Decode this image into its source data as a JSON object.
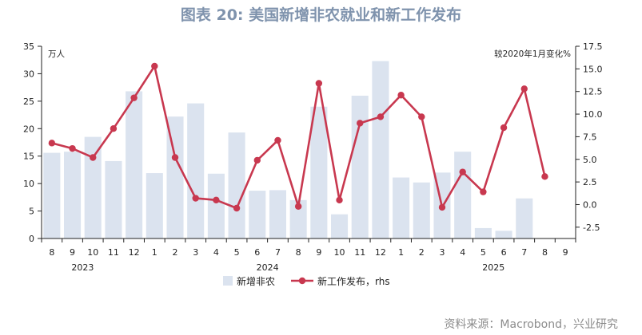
{
  "title": "图表 20: 美国新增非农就业和新工作发布",
  "source": "资料来源：Macrobond，兴业研究",
  "colors": {
    "bars": "#dbe3ef",
    "line": "#c8384f"
  },
  "chart_data": {
    "type": "bar+line",
    "categories": [
      "8",
      "9",
      "10",
      "11",
      "12",
      "1",
      "2",
      "3",
      "4",
      "5",
      "6",
      "7",
      "8",
      "9",
      "10",
      "11",
      "12",
      "1",
      "2",
      "3",
      "4",
      "5",
      "6",
      "7",
      "8",
      "9"
    ],
    "year_labels": [
      {
        "label": "2023",
        "at_index": 1.5
      },
      {
        "label": "2024",
        "at_index": 10.5
      },
      {
        "label": "2025",
        "at_index": 21.5
      }
    ],
    "left_axis": {
      "unit_label": "万人",
      "ylim": [
        0,
        35
      ],
      "ticks": [
        0,
        5,
        10,
        15,
        20,
        25,
        30,
        35
      ]
    },
    "right_axis": {
      "unit_label": "较2020年1月变化%",
      "ylim": [
        -3.75,
        17.5
      ],
      "ticks": [
        -2.5,
        0.0,
        2.5,
        5.0,
        7.5,
        10.0,
        12.5,
        15.0,
        17.5
      ]
    },
    "series": [
      {
        "name": "新增非农",
        "type": "bar",
        "axis": "left",
        "values": [
          15.6,
          15.8,
          18.5,
          14.1,
          26.8,
          11.9,
          22.2,
          24.6,
          11.8,
          19.3,
          8.7,
          8.8,
          7.0,
          24.0,
          4.4,
          26.0,
          32.3,
          11.1,
          10.2,
          12.0,
          15.8,
          1.9,
          1.4,
          7.3,
          null,
          null
        ]
      },
      {
        "name": "新工作发布，rhs",
        "type": "line",
        "axis": "right",
        "values": [
          6.8,
          6.2,
          5.2,
          8.4,
          11.8,
          15.3,
          5.2,
          0.7,
          0.5,
          -0.4,
          4.9,
          7.1,
          -0.2,
          13.4,
          0.5,
          9.0,
          9.7,
          12.1,
          9.7,
          -0.3,
          3.6,
          1.4,
          8.5,
          12.8,
          3.1,
          null
        ]
      }
    ],
    "legend": {
      "position": "bottom",
      "labels": [
        "新增非农",
        "新工作发布，rhs"
      ]
    },
    "grid": false
  }
}
